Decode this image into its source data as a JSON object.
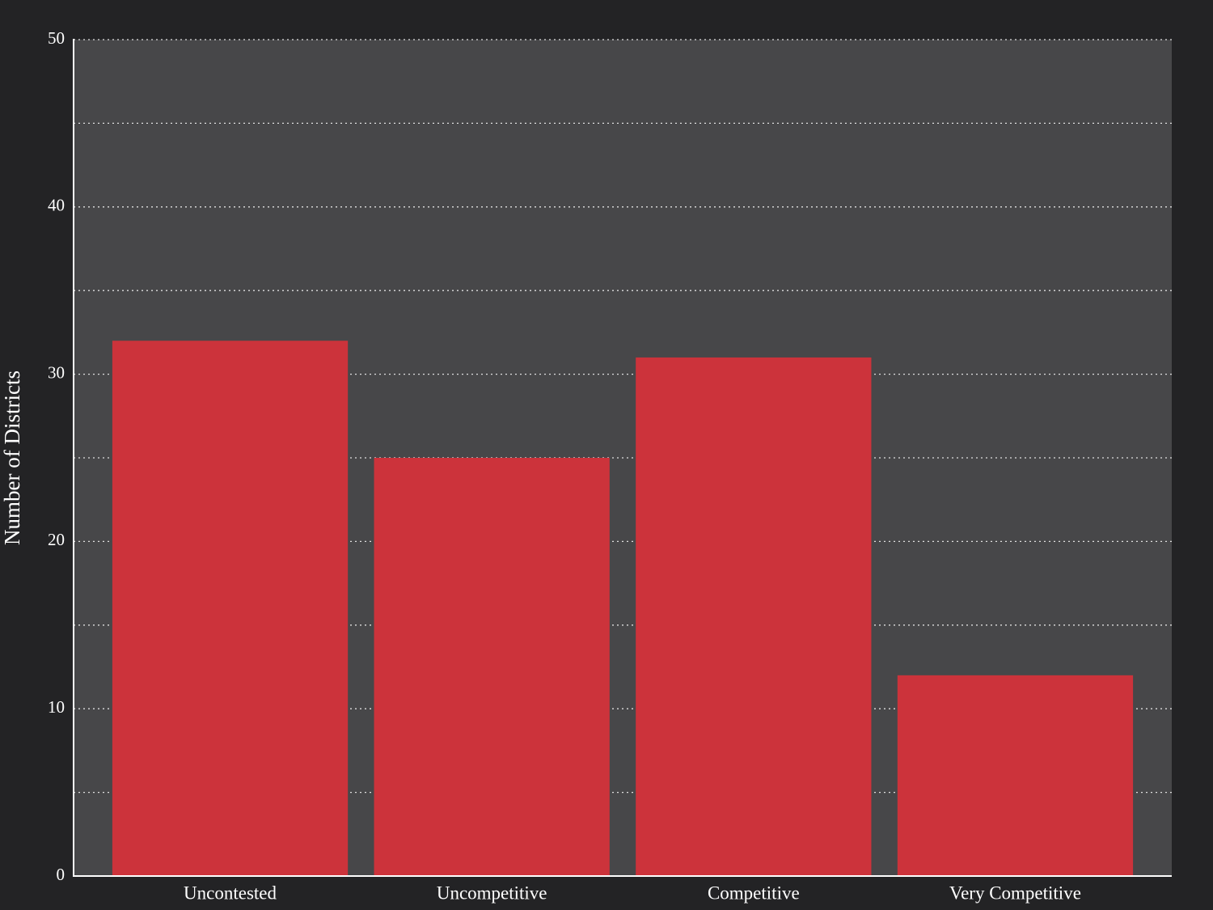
{
  "chart_data": {
    "type": "bar",
    "y_label": "Number of Districts",
    "categories": [
      "Uncontested",
      "Uncompetitive",
      "Competitive",
      "Very Competitive"
    ],
    "values": [
      32,
      25,
      31,
      12
    ],
    "color": "#cc333b",
    "ylim": [
      0,
      50
    ],
    "yticks": [
      0,
      10,
      20,
      30,
      40,
      50
    ],
    "minor_yticks": [
      5,
      15,
      25,
      35,
      45
    ],
    "grid": true
  }
}
